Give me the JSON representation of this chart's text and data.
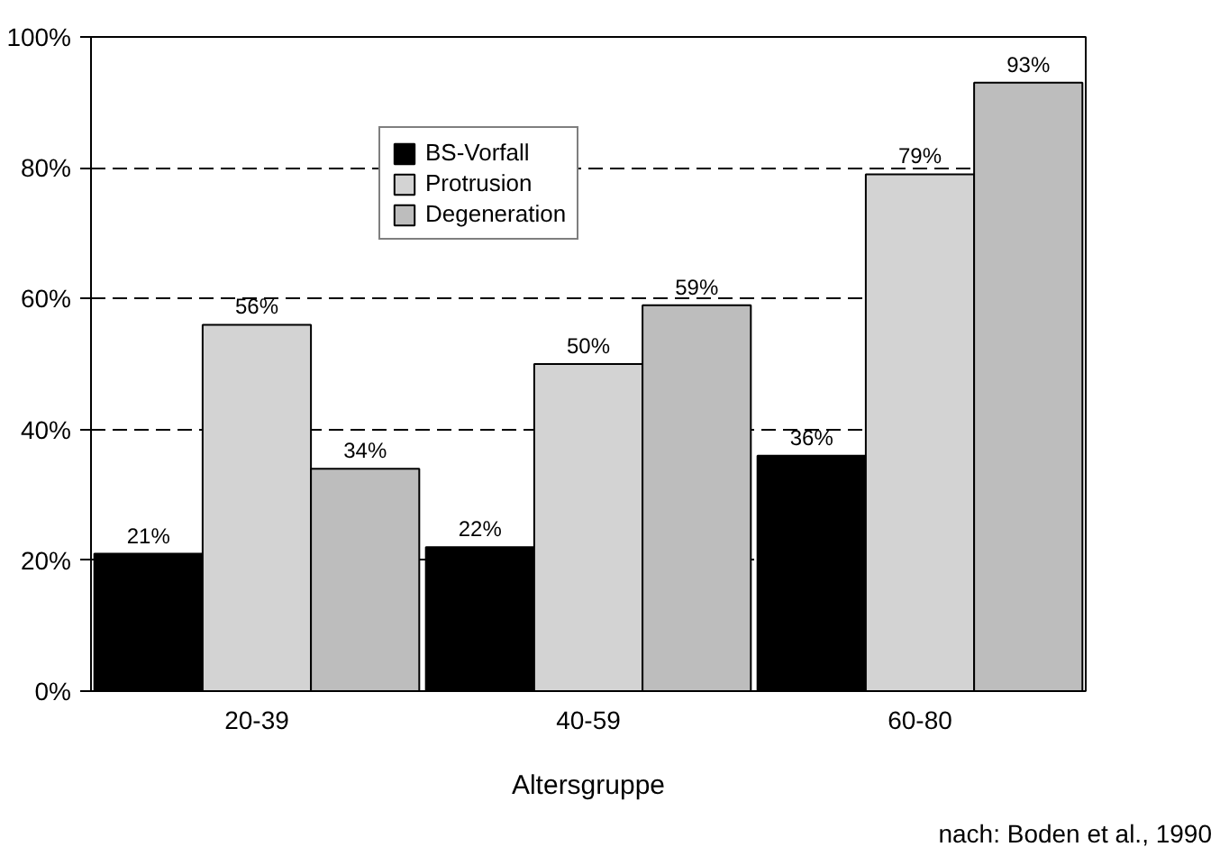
{
  "chart_data": {
    "type": "bar",
    "xlabel": "Altersgruppe",
    "categories": [
      "20-39",
      "40-59",
      "60-80"
    ],
    "series": [
      {
        "name": "BS-Vorfall",
        "color": "#000000",
        "values": [
          21,
          22,
          36
        ],
        "value_labels": [
          "21%",
          "22%",
          "36%"
        ]
      },
      {
        "name": "Protrusion",
        "color": "#d3d3d3",
        "values": [
          56,
          50,
          79
        ],
        "value_labels": [
          "56%",
          "50%",
          "79%"
        ]
      },
      {
        "name": "Degeneration",
        "color": "#bdbdbd",
        "values": [
          34,
          59,
          93
        ],
        "value_labels": [
          "34%",
          "59%",
          "93%"
        ]
      }
    ],
    "ylim": [
      0,
      100
    ],
    "yticks": [
      {
        "value": 0,
        "label": "0%"
      },
      {
        "value": 20,
        "label": "20%"
      },
      {
        "value": 40,
        "label": "40%"
      },
      {
        "value": 60,
        "label": "60%"
      },
      {
        "value": 80,
        "label": "80%"
      },
      {
        "value": 100,
        "label": "100%"
      }
    ],
    "grid": "y",
    "line_style": "dashed",
    "legend": "top",
    "annotations": [
      "nach: Boden et al., 1990"
    ]
  }
}
